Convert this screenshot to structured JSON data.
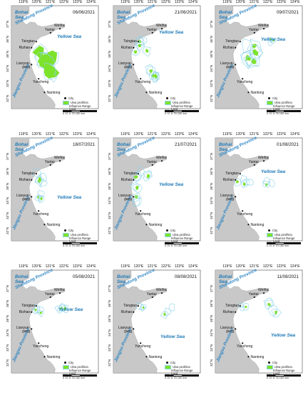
{
  "lon_labels": [
    "119°E",
    "120°E",
    "121°E",
    "122°E",
    "123°E",
    "124°E"
  ],
  "lat_labels": [
    "37°N",
    "36°N",
    "35°N",
    "34°N",
    "33°N",
    "32°N"
  ],
  "sea_labels": {
    "bohai": "Bohai Sea",
    "yellow": "Yellow Sea"
  },
  "province_labels": {
    "shandong": "Shandong Province",
    "jiangsu": "Jiangsu Province"
  },
  "cities": [
    "Weihai",
    "Yantai",
    "Tsingtao",
    "Rizhao",
    "Lianyun-gang",
    "Yancheng",
    "Nantong"
  ],
  "legend": {
    "city": "City",
    "ulva": "Ulva prolifera",
    "influence": "Influence Range",
    "land": "Land"
  },
  "scale_bar": {
    "ticks": [
      "0",
      "37.5",
      "75",
      "150 km"
    ]
  },
  "colors": {
    "land": "#c8c8c8",
    "ulva": "#7de22a",
    "influence": "#8fd4ea",
    "sea_text": "#1f7ab8",
    "province_text": "#2d86c4"
  },
  "panels": [
    {
      "date": "06/06/2021"
    },
    {
      "date": "21/06/2021"
    },
    {
      "date": "09/07/2021"
    },
    {
      "date": "18/07/2021"
    },
    {
      "date": "21/07/2021"
    },
    {
      "date": "01/08/2021"
    },
    {
      "date": "05/08/2021"
    },
    {
      "date": "08/08/2021"
    },
    {
      "date": "11/08/2021"
    }
  ]
}
